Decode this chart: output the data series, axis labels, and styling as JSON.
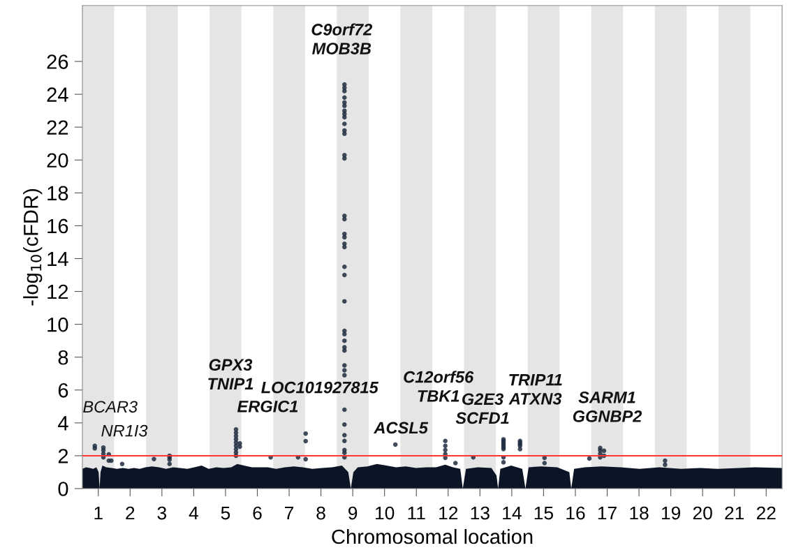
{
  "chart_data": {
    "type": "scatter",
    "xlabel": "Chromosomal location",
    "ylabel": "-log$_{10}$(cFDR)",
    "xlim": [
      0.5,
      22.5
    ],
    "ylim": [
      0,
      29.4
    ],
    "xticks": [
      1,
      2,
      3,
      4,
      5,
      6,
      7,
      8,
      9,
      10,
      11,
      12,
      13,
      14,
      15,
      16,
      17,
      18,
      19,
      20,
      21,
      22
    ],
    "yticks": [
      0,
      2,
      4,
      6,
      8,
      10,
      12,
      14,
      16,
      18,
      20,
      22,
      24,
      26
    ],
    "grid": false,
    "legend": false,
    "bands": [
      {
        "axis": "x",
        "from": 0.5,
        "to": 1.5,
        "color": "#e5e5e5"
      },
      {
        "axis": "x",
        "from": 2.5,
        "to": 3.5,
        "color": "#e5e5e5"
      },
      {
        "axis": "x",
        "from": 4.5,
        "to": 5.5,
        "color": "#e5e5e5"
      },
      {
        "axis": "x",
        "from": 6.5,
        "to": 7.5,
        "color": "#e5e5e5"
      },
      {
        "axis": "x",
        "from": 8.5,
        "to": 9.5,
        "color": "#e5e5e5"
      },
      {
        "axis": "x",
        "from": 10.5,
        "to": 11.5,
        "color": "#e5e5e5"
      },
      {
        "axis": "x",
        "from": 12.5,
        "to": 13.5,
        "color": "#e5e5e5"
      },
      {
        "axis": "x",
        "from": 14.5,
        "to": 15.5,
        "color": "#e5e5e5"
      },
      {
        "axis": "x",
        "from": 16.5,
        "to": 17.5,
        "color": "#e5e5e5"
      },
      {
        "axis": "x",
        "from": 18.5,
        "to": 19.5,
        "color": "#e5e5e5"
      },
      {
        "axis": "x",
        "from": 20.5,
        "to": 21.5,
        "color": "#e5e5e5"
      }
    ],
    "ref_lines": [
      {
        "axis": "y",
        "value": 2,
        "color": "#ff3333"
      }
    ],
    "series": [
      {
        "type": "area",
        "color": "#0b1526",
        "x": [
          0.5,
          0.61,
          0.73,
          0.84,
          0.94,
          1.01,
          1.04,
          1.07,
          1.13,
          1.25,
          1.42,
          1.59,
          1.77,
          1.95,
          2.12,
          2.3,
          2.48,
          2.69,
          2.91,
          3.13,
          3.35,
          3.57,
          3.8,
          4.02,
          4.25,
          4.47,
          4.71,
          4.94,
          5.18,
          5.37,
          5.58,
          5.83,
          6.08,
          6.33,
          6.59,
          6.87,
          7.15,
          7.43,
          7.73,
          8.04,
          8.35,
          8.66,
          8.86,
          8.94,
          9.02,
          9.16,
          9.46,
          9.76,
          10.06,
          10.36,
          10.67,
          10.99,
          11.31,
          11.62,
          11.91,
          12.15,
          12.38,
          12.46,
          12.56,
          12.93,
          13.36,
          13.52,
          13.57,
          13.64,
          13.98,
          14.33,
          14.43,
          14.53,
          14.93,
          15.43,
          15.81,
          15.87,
          15.96,
          16.3,
          16.82,
          17.42,
          18.02,
          18.64,
          19.32,
          19.92,
          20.5,
          21.65,
          22.5
        ],
        "values": [
          1.2,
          1.3,
          1.25,
          1.2,
          1.3,
          1.0,
          0,
          1.0,
          1.4,
          1.3,
          1.25,
          1.2,
          1.25,
          1.2,
          1.25,
          1.2,
          1.3,
          1.35,
          1.3,
          1.2,
          1.3,
          1.25,
          1.2,
          1.3,
          1.4,
          1.2,
          1.3,
          1.25,
          1.3,
          1.5,
          1.4,
          1.3,
          1.3,
          1.3,
          1.2,
          1.3,
          1.35,
          1.3,
          1.2,
          1.25,
          1.3,
          1.4,
          1.0,
          0,
          1.0,
          1.3,
          1.35,
          1.5,
          1.4,
          1.3,
          1.35,
          1.25,
          1.3,
          1.3,
          1.45,
          1.3,
          1.2,
          0,
          1.2,
          1.3,
          1.25,
          0.8,
          0,
          1.2,
          1.4,
          1.2,
          0,
          1.3,
          1.35,
          1.3,
          1.0,
          0,
          1.2,
          1.3,
          1.35,
          1.3,
          1.2,
          1.3,
          1.2,
          1.25,
          1.2,
          1.3,
          1.25
        ]
      },
      {
        "color": "#1f2d3f",
        "marker": "circle",
        "x": [
          0.89,
          0.89,
          1.16,
          1.16,
          1.16,
          1.16,
          1.33,
          1.33,
          1.41,
          1.75,
          2.75,
          3.24,
          3.24,
          3.24,
          3.24,
          5.33,
          5.33,
          5.33,
          5.33,
          5.33,
          5.33,
          5.33,
          5.33,
          5.33,
          5.45,
          5.45,
          6.42,
          7.28,
          7.52,
          7.52,
          7.52,
          8.74,
          8.74,
          8.74,
          8.74,
          8.74,
          8.74,
          8.74,
          8.74,
          8.74,
          8.74,
          8.74,
          8.74,
          8.74,
          8.74,
          8.74,
          8.74,
          8.74,
          8.74,
          8.74,
          8.74,
          8.74,
          8.74,
          8.74,
          8.74,
          8.74,
          8.74,
          8.74,
          8.74,
          8.74,
          8.74,
          8.74,
          8.74,
          8.74,
          8.74,
          8.74,
          8.74,
          8.74,
          8.74,
          10.34,
          11.91,
          11.91,
          11.91,
          11.91,
          11.91,
          12.23,
          12.79,
          13.74,
          13.74,
          13.74,
          13.74,
          13.74,
          13.74,
          13.74,
          13.74,
          13.74,
          14.26,
          14.26,
          14.26,
          14.26,
          14.26,
          15.03,
          15.03,
          16.78,
          16.78,
          16.78,
          16.78,
          16.9,
          16.9,
          16.44,
          18.82,
          18.82
        ],
        "values": [
          2.45,
          2.6,
          2.5,
          2.33,
          2.12,
          1.9,
          2.08,
          1.7,
          1.7,
          1.5,
          1.8,
          2.0,
          1.9,
          1.76,
          1.5,
          3.6,
          3.4,
          3.2,
          3.0,
          2.8,
          2.6,
          2.4,
          2.2,
          2.0,
          2.75,
          2.55,
          1.9,
          1.9,
          3.35,
          2.89,
          1.79,
          24.6,
          24.4,
          24.2,
          23.8,
          23.5,
          23.3,
          23.0,
          22.8,
          22.6,
          22.2,
          21.8,
          21.6,
          20.3,
          20.1,
          16.6,
          16.4,
          15.5,
          15.3,
          14.9,
          14.7,
          13.5,
          13.0,
          11.4,
          9.6,
          9.4,
          9.0,
          8.6,
          8.4,
          7.5,
          7.2,
          6.9,
          4.8,
          3.9,
          3.25,
          2.9,
          2.35,
          2.18,
          1.9,
          2.68,
          2.9,
          2.6,
          2.35,
          2.1,
          1.87,
          1.55,
          1.9,
          3.0,
          2.9,
          2.8,
          2.7,
          2.6,
          2.5,
          2.4,
          1.9,
          1.6,
          2.9,
          2.8,
          2.7,
          2.6,
          2.4,
          1.87,
          1.55,
          2.47,
          2.33,
          2.12,
          1.9,
          2.3,
          2.0,
          1.83,
          1.7,
          1.45
        ]
      }
    ],
    "annotations": [
      {
        "text": "BCAR3",
        "x": 0.89,
        "y": 2.6
      },
      {
        "text": "NR1I3",
        "x": 1.16,
        "y": 2.5
      },
      {
        "text": "GPX3\nTNIP1",
        "x": 5.33,
        "y": 3.6
      },
      {
        "text": "ERGIC1",
        "x": 5.45,
        "y": 2.75
      },
      {
        "text": "LOC101927815",
        "x": 7.52,
        "y": 3.35
      },
      {
        "text": "C9orf72\nMOB3B",
        "x": 8.74,
        "y": 24.6
      },
      {
        "text": "ACSL5",
        "x": 10.34,
        "y": 2.68
      },
      {
        "text": "C12orf56\nTBK1",
        "x": 11.91,
        "y": 2.9
      },
      {
        "text": "G2E3\nSCFD1",
        "x": 13.74,
        "y": 3.0
      },
      {
        "text": "TRIP11\nATXN3",
        "x": 14.26,
        "y": 2.9
      },
      {
        "text": "SARM1\nGGNBP2",
        "x": 16.78,
        "y": 2.47
      }
    ]
  }
}
